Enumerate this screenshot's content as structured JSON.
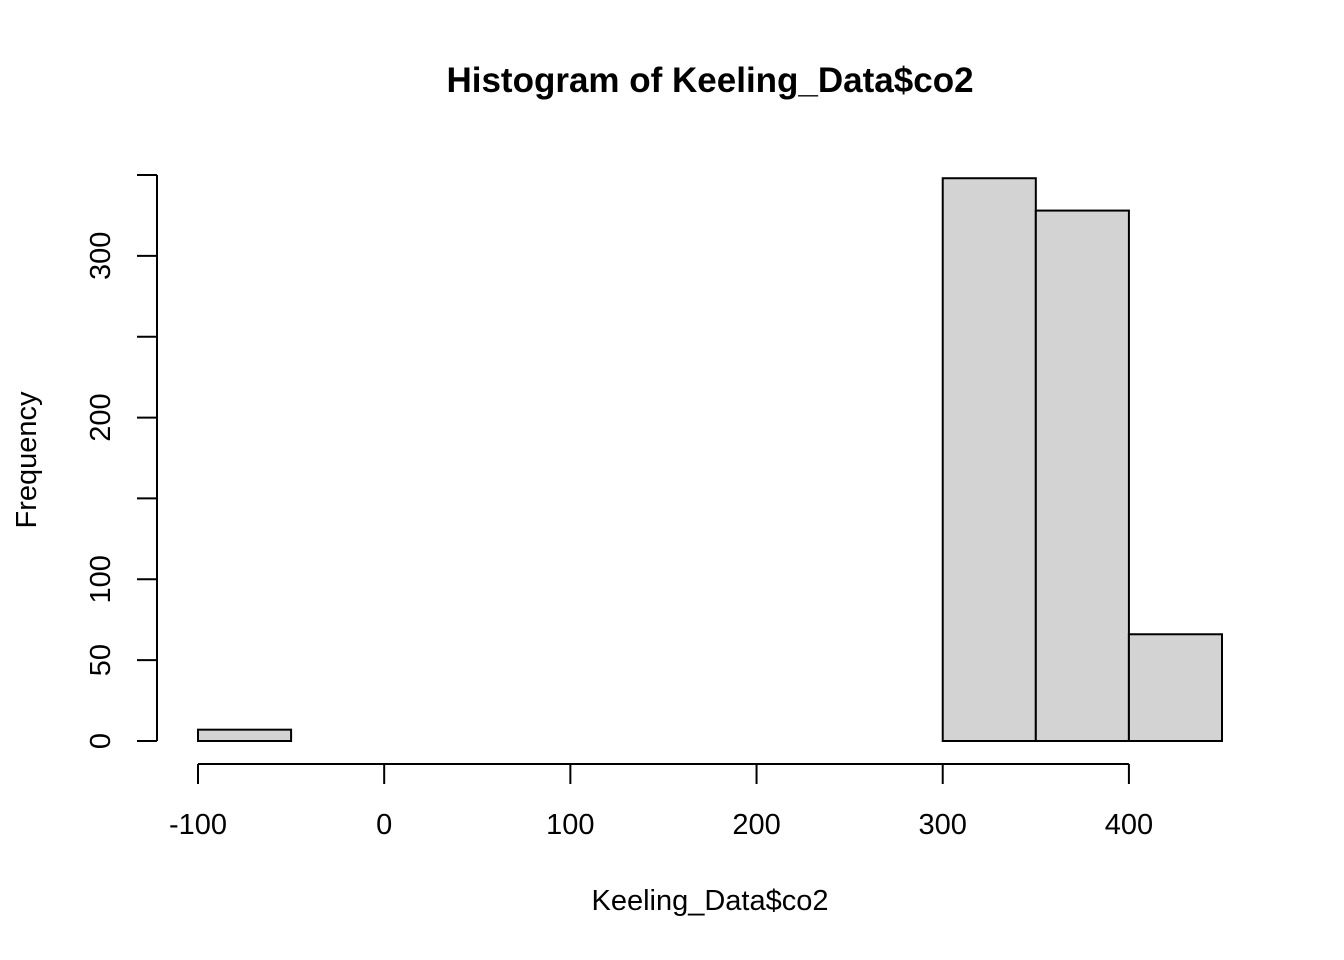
{
  "chart_data": {
    "type": "bar",
    "title": "Histogram of Keeling_Data$co2",
    "xlabel": "Keeling_Data$co2",
    "ylabel": "Frequency",
    "bins": [
      {
        "start": -100,
        "end": -50,
        "count": 7
      },
      {
        "start": -50,
        "end": 0,
        "count": 0
      },
      {
        "start": 0,
        "end": 50,
        "count": 0
      },
      {
        "start": 50,
        "end": 100,
        "count": 0
      },
      {
        "start": 100,
        "end": 150,
        "count": 0
      },
      {
        "start": 150,
        "end": 200,
        "count": 0
      },
      {
        "start": 200,
        "end": 250,
        "count": 0
      },
      {
        "start": 250,
        "end": 300,
        "count": 0
      },
      {
        "start": 300,
        "end": 350,
        "count": 348
      },
      {
        "start": 350,
        "end": 400,
        "count": 328
      },
      {
        "start": 400,
        "end": 450,
        "count": 66
      }
    ],
    "xlim": [
      -100,
      450
    ],
    "ylim": [
      0,
      350
    ],
    "x_ticks": [
      -100,
      0,
      100,
      200,
      300,
      400
    ],
    "x_tick_labels": [
      "-100",
      "0",
      "100",
      "200",
      "300",
      "400"
    ],
    "y_ticks": [
      0,
      50,
      100,
      150,
      200,
      250,
      300,
      350
    ],
    "y_tick_labels": [
      "0",
      "50",
      "100",
      "",
      "200",
      "",
      "300",
      ""
    ],
    "bar_fill": "#d3d3d3",
    "grid": false,
    "legend": "none"
  }
}
